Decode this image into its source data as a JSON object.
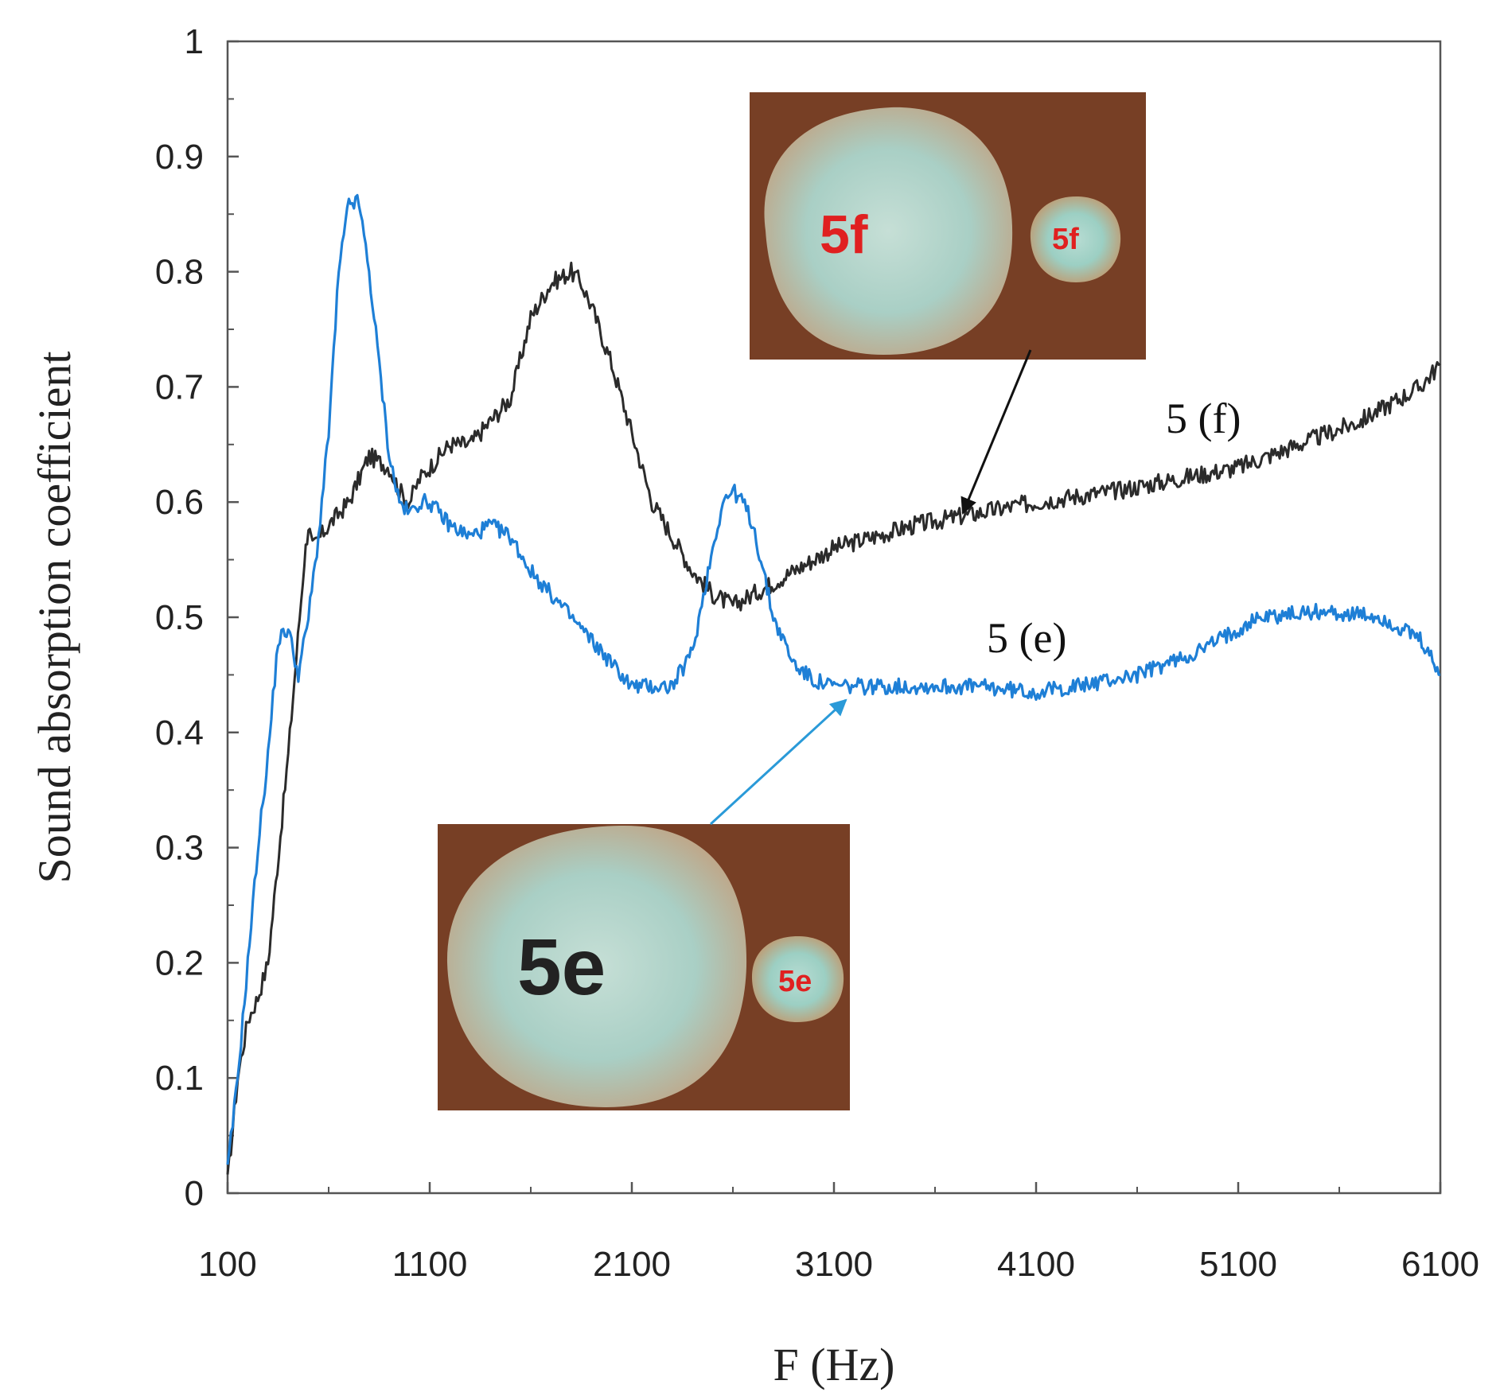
{
  "chart_data": {
    "type": "line",
    "title": "",
    "xlabel": "F (Hz)",
    "ylabel": "Sound absorption coefficient",
    "xlim": [
      100,
      6100
    ],
    "ylim": [
      0,
      1
    ],
    "x_ticks": [
      100,
      1100,
      2100,
      3100,
      4100,
      5100,
      6100
    ],
    "y_ticks": [
      0,
      0.1,
      0.2,
      0.3,
      0.4,
      0.5,
      0.6,
      0.7,
      0.8,
      0.9,
      1
    ],
    "grid": false,
    "legend": "none",
    "series": [
      {
        "name": "5 (f)",
        "color": "#2b2b2b",
        "x": [
          100,
          150,
          200,
          250,
          300,
          400,
          480,
          500,
          520,
          600,
          700,
          800,
          900,
          950,
          1000,
          1050,
          1100,
          1200,
          1300,
          1400,
          1500,
          1600,
          1700,
          1800,
          1850,
          1900,
          2000,
          2100,
          2200,
          2300,
          2400,
          2500,
          2600,
          2700,
          2800,
          2900,
          3000,
          3100,
          3300,
          3500,
          3800,
          4100,
          4500,
          4800,
          5100,
          5400,
          5700,
          6000,
          6100
        ],
        "y": [
          0.01,
          0.1,
          0.15,
          0.17,
          0.2,
          0.38,
          0.55,
          0.58,
          0.56,
          0.58,
          0.6,
          0.64,
          0.63,
          0.61,
          0.6,
          0.62,
          0.63,
          0.65,
          0.65,
          0.67,
          0.69,
          0.76,
          0.79,
          0.8,
          0.79,
          0.77,
          0.72,
          0.66,
          0.6,
          0.57,
          0.54,
          0.52,
          0.51,
          0.52,
          0.53,
          0.54,
          0.55,
          0.56,
          0.57,
          0.58,
          0.59,
          0.6,
          0.61,
          0.62,
          0.63,
          0.65,
          0.67,
          0.7,
          0.72
        ]
      },
      {
        "name": "5 (e)",
        "color": "#1e7fd6",
        "x": [
          100,
          150,
          200,
          250,
          300,
          350,
          400,
          450,
          500,
          550,
          600,
          650,
          700,
          750,
          800,
          850,
          900,
          950,
          1000,
          1050,
          1100,
          1200,
          1300,
          1400,
          1500,
          1600,
          1800,
          2000,
          2100,
          2200,
          2300,
          2400,
          2500,
          2550,
          2600,
          2650,
          2700,
          2800,
          2900,
          3000,
          3100,
          3300,
          3500,
          3800,
          4100,
          4300,
          4600,
          4900,
          5200,
          5500,
          5800,
          6000,
          6100
        ],
        "y": [
          0.02,
          0.1,
          0.2,
          0.3,
          0.38,
          0.48,
          0.49,
          0.45,
          0.5,
          0.57,
          0.66,
          0.8,
          0.86,
          0.86,
          0.8,
          0.72,
          0.64,
          0.6,
          0.59,
          0.6,
          0.6,
          0.58,
          0.57,
          0.58,
          0.57,
          0.54,
          0.5,
          0.46,
          0.44,
          0.44,
          0.44,
          0.47,
          0.56,
          0.6,
          0.61,
          0.6,
          0.58,
          0.5,
          0.46,
          0.445,
          0.44,
          0.44,
          0.44,
          0.44,
          0.435,
          0.44,
          0.45,
          0.47,
          0.5,
          0.505,
          0.5,
          0.48,
          0.45
        ]
      }
    ],
    "annotations": [
      {
        "text": "5 (f)",
        "series": "5 (f)"
      },
      {
        "text": "5 (e)",
        "series": "5 (e)"
      }
    ],
    "inset_photos": [
      {
        "name": "sample-5f-photo",
        "large_label": "5f",
        "small_label": "5f",
        "label_color": "#e02020"
      },
      {
        "name": "sample-5e-photo",
        "large_label": "5e",
        "small_label": "5e",
        "label_color": "#e02020"
      }
    ]
  }
}
